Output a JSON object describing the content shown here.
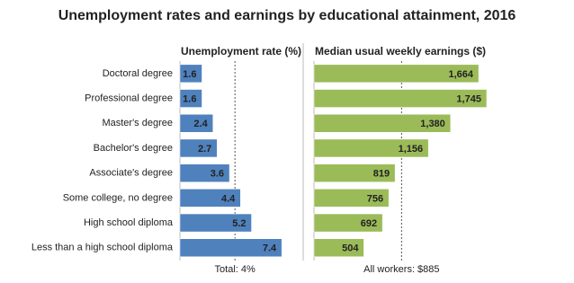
{
  "title": "Unemployment rates and earnings by educational attainment, 2016",
  "chart_data": [
    {
      "type": "bar",
      "orientation": "horizontal",
      "title": "Unemployment rate (%)",
      "categories": [
        "Doctoral degree",
        "Professional degree",
        "Master's degree",
        "Bachelor's degree",
        "Associate's degree",
        "Some college, no degree",
        "High school diploma",
        "Less than a high school diploma"
      ],
      "values": [
        1.6,
        1.6,
        2.4,
        2.7,
        3.6,
        4.4,
        5.2,
        7.4
      ],
      "color": "#4f81bd",
      "xlim": [
        0,
        8.5
      ],
      "reference_line": {
        "value": 4,
        "label": "Total: 4%"
      }
    },
    {
      "type": "bar",
      "orientation": "horizontal",
      "title": "Median usual weekly earnings ($)",
      "values": [
        1664,
        1745,
        1380,
        1156,
        819,
        756,
        692,
        504
      ],
      "value_labels": [
        "1,664",
        "1,745",
        "1,380",
        "1,156",
        "819",
        "756",
        "692",
        "504"
      ],
      "color": "#9bbb59",
      "xlim": [
        0,
        1900
      ],
      "reference_line": {
        "value": 885,
        "label": "All workers: $885"
      }
    }
  ]
}
